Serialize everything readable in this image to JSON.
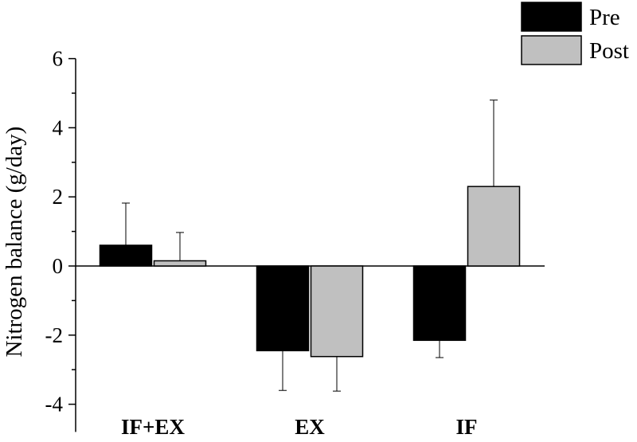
{
  "chart_data": {
    "type": "bar",
    "title": "",
    "xlabel": "",
    "ylabel": "Nitrogen balance (g/day)",
    "ylim": [
      -4.8,
      6
    ],
    "yticks": [
      {
        "value": 6,
        "label": "6"
      },
      {
        "value": 4,
        "label": "4"
      },
      {
        "value": 2,
        "label": "2"
      },
      {
        "value": 0,
        "label": "0"
      },
      {
        "value": -2,
        "label": "-2"
      },
      {
        "value": -4,
        "label": "-4"
      }
    ],
    "categories": [
      "IF+EX",
      "EX",
      "IF"
    ],
    "series": [
      {
        "name": "Pre",
        "color": "#000000",
        "values": [
          0.6,
          -2.45,
          -2.15
        ],
        "errors": [
          1.22,
          1.15,
          0.5
        ]
      },
      {
        "name": "Post",
        "color": "#c0c0c0",
        "values": [
          0.15,
          -2.62,
          2.3
        ],
        "errors": [
          0.82,
          1.0,
          2.5
        ]
      }
    ],
    "grid": false,
    "legend": "top-right"
  }
}
